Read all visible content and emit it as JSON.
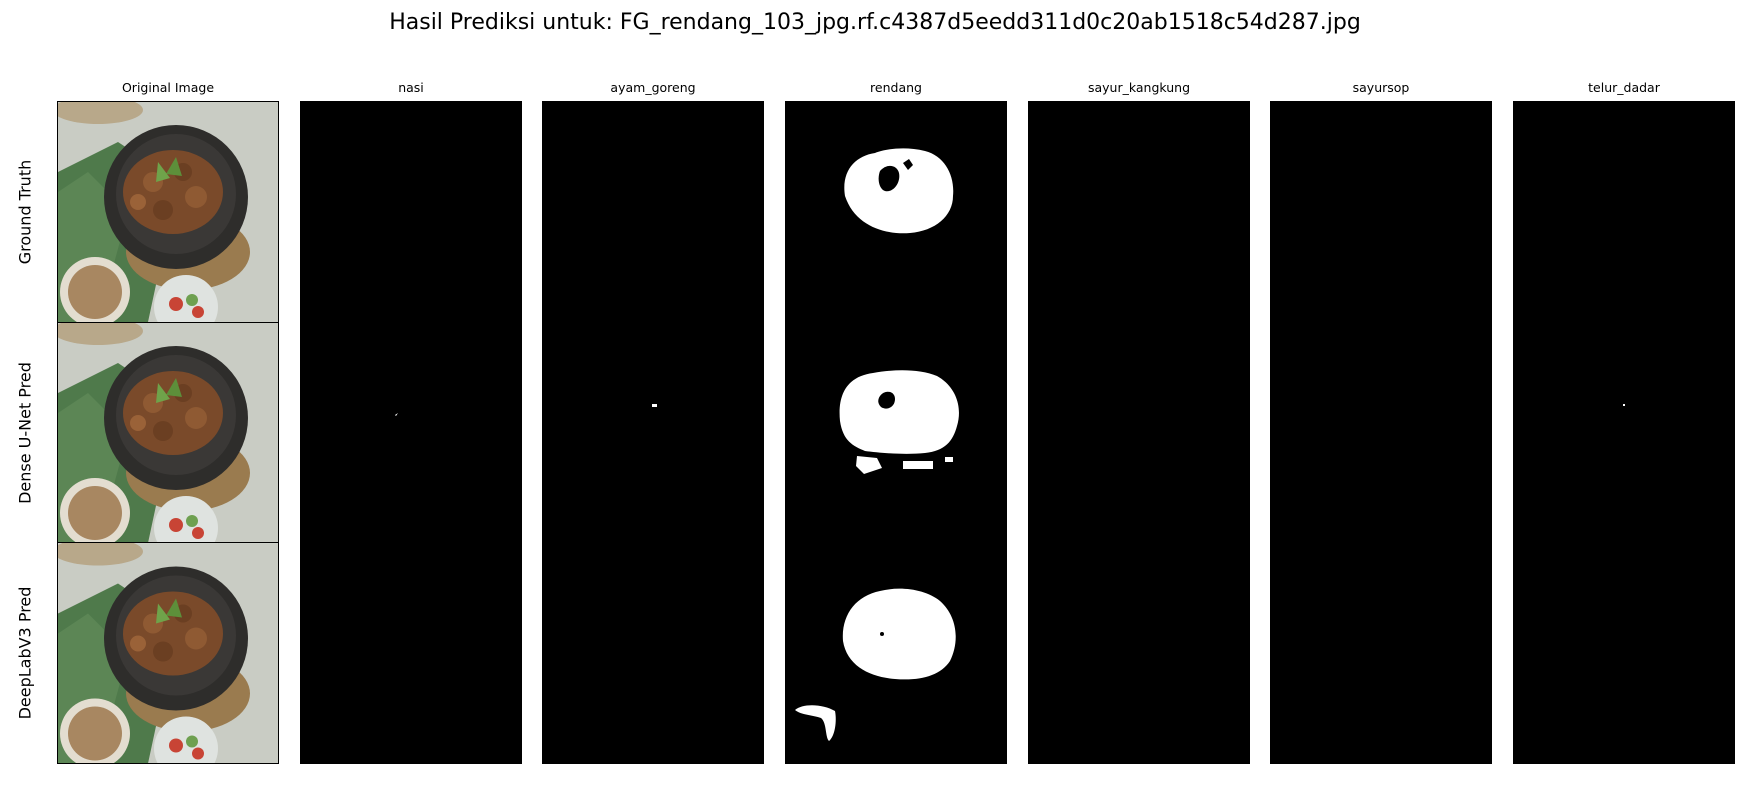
{
  "title": "Hasil Prediksi untuk: FG_rendang_103_jpg.rf.c4387d5eedd311d0c20ab1518c54d287.jpg",
  "columns": {
    "original": "Original Image",
    "nasi": "nasi",
    "ayam_goreng": "ayam_goreng",
    "rendang": "rendang",
    "sayur_kangkung": "sayur_kangkung",
    "sayursop": "sayursop",
    "telur_dadar": "telur_dadar"
  },
  "rows": {
    "ground_truth": "Ground Truth",
    "dense_unet": "Dense U-Net Pred",
    "deeplab": "DeepLabV3 Pred"
  },
  "colors": {
    "mask_background": "#000000",
    "mask_foreground": "#ffffff",
    "leaf_green": "#4f7a4b",
    "bowl": "#2e2d2b",
    "rendang_brown": "#7a4a2a"
  }
}
